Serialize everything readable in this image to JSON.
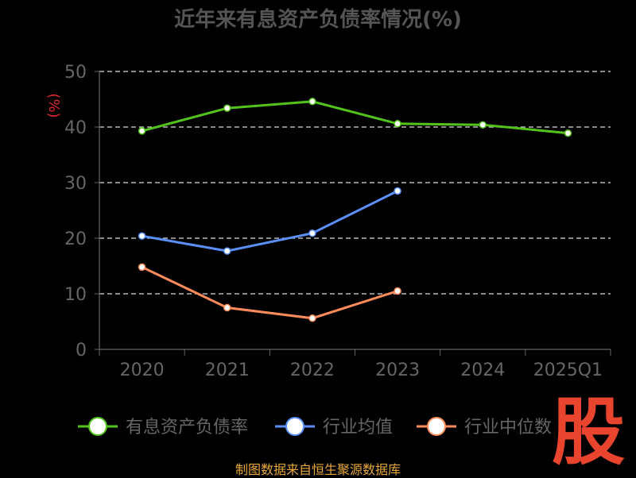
{
  "chart_data": {
    "type": "line",
    "title": "近年来有息资产负债率情况(%)",
    "ylabel": "(%)",
    "xlabel": "",
    "categories": [
      "2020",
      "2021",
      "2022",
      "2023",
      "2024",
      "2025Q1"
    ],
    "ylim": [
      0,
      50
    ],
    "yticks": [
      0,
      10,
      20,
      30,
      40,
      50
    ],
    "grid": true,
    "legend_position": "bottom",
    "series": [
      {
        "name": "有息资产负债率",
        "color": "#52c41a",
        "values": [
          39.3,
          43.4,
          44.6,
          40.6,
          40.4,
          38.9
        ]
      },
      {
        "name": "行业均值",
        "color": "#5b8ff9",
        "values": [
          20.4,
          17.7,
          20.9,
          28.5,
          null,
          null
        ]
      },
      {
        "name": "行业中位数",
        "color": "#ff8c5a",
        "values": [
          14.8,
          7.5,
          5.6,
          10.5,
          null,
          null
        ]
      }
    ]
  },
  "footer": {
    "source": "制图数据来自恒生聚源数据库",
    "logo_text": "股"
  }
}
